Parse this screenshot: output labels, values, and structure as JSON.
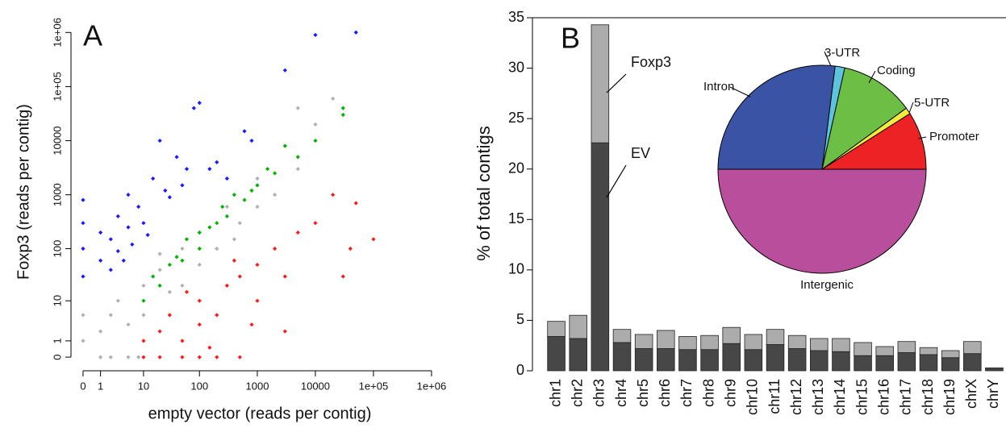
{
  "chart_data": [
    {
      "type": "scatter",
      "panel_label": "A",
      "x_label": "empty vector (reads per contig)",
      "y_label": "Foxp3 (reads per contig)",
      "xscale": "log1p",
      "yscale": "log1p",
      "xlim": [
        -0.38,
        1900000
      ],
      "ylim": [
        -0.44,
        2300000
      ],
      "xticks": [
        0,
        1,
        10,
        100,
        1000,
        10000,
        {
          "value": 100000,
          "label": "1e+05"
        },
        {
          "value": 1000000,
          "label": "1e+06"
        }
      ],
      "yticks": [
        0,
        1,
        10,
        100,
        1000,
        10000,
        {
          "value": 100000,
          "label": "1e+05"
        },
        {
          "value": 1000000,
          "label": "1e+06"
        }
      ],
      "series": [
        {
          "color": "#b0b0b0",
          "x": [
            1,
            2,
            3,
            5,
            10,
            10,
            20,
            30,
            50,
            100,
            100,
            200,
            300,
            500,
            1000,
            1000,
            2000,
            3000,
            5000,
            10000,
            20000,
            5000,
            0,
            0,
            1,
            2,
            5,
            8,
            50,
            20,
            400
          ],
          "y": [
            2,
            5,
            10,
            3,
            20,
            5,
            40,
            15,
            100,
            50,
            200,
            100,
            600,
            300,
            2000,
            600,
            1000,
            8000,
            3000,
            20000,
            60000,
            40000,
            5,
            1,
            0,
            0,
            0,
            0,
            20,
            80,
            150
          ]
        },
        {
          "color": "#1a1aff",
          "x": [
            0,
            0,
            0,
            0,
            1,
            1,
            2,
            2,
            3,
            3,
            5,
            5,
            8,
            10,
            15,
            20,
            25,
            40,
            60,
            80,
            100,
            150,
            300,
            600,
            800,
            3000,
            10000,
            50000,
            4,
            6,
            12,
            30,
            50,
            200
          ],
          "y": [
            100,
            300,
            30,
            800,
            60,
            200,
            150,
            40,
            400,
            90,
            250,
            1000,
            600,
            300,
            2000,
            10000,
            1200,
            5000,
            3000,
            40000,
            50000,
            3000,
            2000,
            15000,
            10000,
            200000,
            900000,
            1000000,
            60,
            120,
            180,
            900,
            1500,
            4000
          ]
        },
        {
          "color": "#00b400",
          "x": [
            10,
            15,
            20,
            30,
            50,
            60,
            100,
            100,
            200,
            300,
            400,
            600,
            1000,
            1500,
            2000,
            3000,
            5000,
            10000,
            30000,
            30000,
            40,
            150,
            800,
            250
          ],
          "y": [
            10,
            30,
            20,
            50,
            60,
            150,
            200,
            100,
            300,
            400,
            1000,
            800,
            1500,
            3000,
            2500,
            8000,
            5000,
            10000,
            40000,
            30000,
            70,
            250,
            1200,
            600
          ]
        },
        {
          "color": "#ff1a1a",
          "x": [
            10,
            20,
            50,
            100,
            200,
            500,
            10,
            20,
            30,
            50,
            100,
            100,
            200,
            300,
            500,
            1000,
            1000,
            2000,
            3000,
            5000,
            10000,
            20000,
            30000,
            40000,
            50000,
            100000,
            60,
            150,
            400,
            800,
            3000
          ],
          "y": [
            0,
            0,
            0,
            0,
            0,
            0,
            1,
            2,
            5,
            1,
            10,
            3,
            5,
            20,
            30,
            50,
            10,
            100,
            30,
            200,
            300,
            1000,
            30,
            100,
            700,
            150,
            15,
            0.5,
            60,
            3,
            2
          ]
        }
      ]
    },
    {
      "type": "bar",
      "panel_label": "B",
      "y_label": "% of total contigs",
      "stacked": true,
      "categories": [
        "chr1",
        "chr2",
        "chr3",
        "chr4",
        "chr5",
        "chr6",
        "chr7",
        "chr8",
        "chr9",
        "chr10",
        "chr11",
        "chr12",
        "chr13",
        "chr14",
        "chr15",
        "chr16",
        "chr17",
        "chr18",
        "chr19",
        "chrX",
        "chrY"
      ],
      "series": [
        {
          "name": "EV",
          "color": "#474747",
          "values": [
            3.4,
            3.2,
            22.6,
            2.8,
            2.2,
            2.2,
            2.1,
            2.1,
            2.7,
            2.1,
            2.6,
            2.2,
            2.0,
            1.9,
            1.5,
            1.5,
            1.8,
            1.6,
            1.3,
            1.7,
            0.2
          ]
        },
        {
          "name": "Foxp3",
          "color": "#acacac",
          "values": [
            1.5,
            2.3,
            11.7,
            1.3,
            1.4,
            1.8,
            1.3,
            1.4,
            1.6,
            1.5,
            1.5,
            1.3,
            1.2,
            1.3,
            1.3,
            0.9,
            1.1,
            0.7,
            0.7,
            1.2,
            0.1
          ]
        }
      ],
      "ylim": [
        0,
        35
      ],
      "yticks": [
        0,
        5,
        10,
        15,
        20,
        25,
        30,
        35
      ]
    },
    {
      "type": "pie",
      "categories": [
        "Promoter",
        "5-UTR",
        "Coding",
        "3-UTR",
        "Intron",
        "Intergenic"
      ],
      "values": [
        9,
        1,
        11.5,
        1.5,
        27,
        50
      ],
      "colors": [
        "#ed2224",
        "#f5eb3b",
        "#6cbe45",
        "#5bc4de",
        "#3a53a4",
        "#b94e9c"
      ]
    }
  ]
}
